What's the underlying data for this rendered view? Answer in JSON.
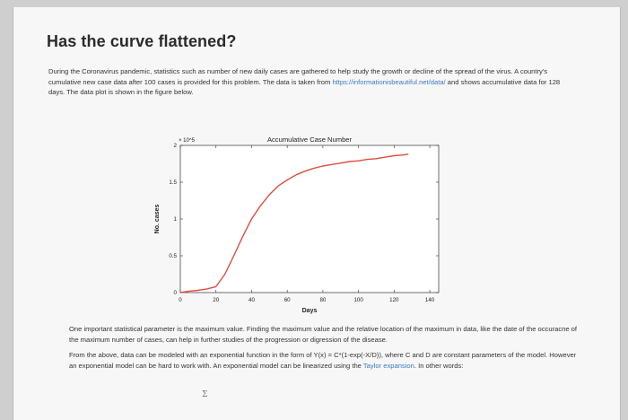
{
  "page": {
    "title": "Has the curve flattened?",
    "intro": {
      "text_before_link": "During the Coronavirus pandemic, statistics such as number of new daily cases are gathered to help study the growth or decline of the spread of the virus. A country's cumulative new case data after 100 cases is provided for this problem. The data is taken from ",
      "link": "https://informationisbeautiful.net/data/",
      "text_after_link": " and shows accumulative data for 128 days. The data plot is shown in the figure below."
    },
    "para2": "One important statistical parameter is the maximum value. Finding the maximum value and the relative location of the maximum in data, like the date of the occuracne of the maximum number of cases, can help in further studies of the progression or digression of the disease.",
    "para3_text": "From the above, data can be modeled with an exponential function in the form of Y(x) = C*(1-exp(-X/D)), where C and D are constant parameters of the model. However an exponential model can be hard to work with. An exponential model can be linearized using the ",
    "para3_link": "Taylor expansion",
    "para3_tail": ". In other words:",
    "formula_fragment": "Σ"
  },
  "chart_data": {
    "type": "line",
    "title": "Accumulative Case Number",
    "xlabel": "Days",
    "ylabel": "No. cases",
    "y_multiplier": "× 10^5",
    "xlim": [
      0,
      145
    ],
    "ylim": [
      0,
      2
    ],
    "xticks": [
      0,
      20,
      40,
      60,
      80,
      100,
      120,
      140
    ],
    "yticks": [
      0,
      0.5,
      1,
      1.5,
      2
    ],
    "ytick_labels": [
      "0",
      "0.5",
      "1",
      "1.5",
      "2"
    ],
    "color": "#d9503f",
    "series": [
      {
        "x": [
          0,
          5,
          10,
          15,
          20,
          25,
          30,
          35,
          40,
          45,
          50,
          55,
          60,
          65,
          70,
          75,
          80,
          85,
          90,
          95,
          100,
          105,
          110,
          115,
          120,
          125,
          128
        ],
        "y": [
          0.0,
          0.02,
          0.03,
          0.05,
          0.08,
          0.25,
          0.5,
          0.76,
          1.0,
          1.18,
          1.33,
          1.45,
          1.53,
          1.6,
          1.65,
          1.69,
          1.72,
          1.74,
          1.76,
          1.78,
          1.79,
          1.81,
          1.82,
          1.84,
          1.86,
          1.87,
          1.88
        ]
      }
    ]
  }
}
